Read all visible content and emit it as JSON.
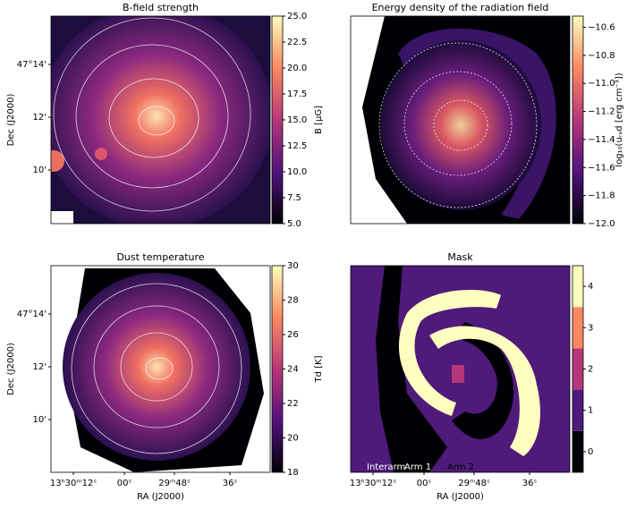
{
  "chart_data": [
    {
      "type": "image",
      "title": "B-field strength",
      "colorbar_label": "B [μG]",
      "clim": [
        5,
        25
      ],
      "cticks": [
        {
          "value": 5,
          "label": "5.0"
        },
        7.5,
        {
          "value": 10,
          "label": "10.0"
        },
        12.5,
        {
          "value": 15,
          "label": "15.0"
        },
        17.5,
        {
          "value": 20,
          "label": "20.0"
        },
        22.5,
        {
          "value": 25,
          "label": "25.0"
        }
      ],
      "ylabel": "Dec (J2000)",
      "ytick_labels": [
        "47°14'",
        "12'",
        "10'"
      ]
    },
    {
      "type": "image",
      "title": "Energy density of the radiation field",
      "colorbar_label": "log₁₀(uᵣₐd [erg cm⁻³])",
      "clim": [
        -12.0,
        -10.52
      ],
      "cticks": [
        {
          "value": -12.0,
          "label": "−12.0"
        },
        {
          "value": -11.8,
          "label": "−11.8"
        },
        {
          "value": -11.6,
          "label": "−11.6"
        },
        {
          "value": -11.4,
          "label": "−11.4"
        },
        {
          "value": -11.2,
          "label": "−11.2"
        },
        {
          "value": -11.0,
          "label": "−11.0"
        },
        {
          "value": -10.8,
          "label": "−10.8"
        },
        {
          "value": -10.6,
          "label": "−10.6"
        }
      ]
    },
    {
      "type": "image",
      "title": "Dust temperature",
      "colorbar_label": "Td [K]",
      "clim": [
        18,
        30
      ],
      "cticks": [
        18,
        20,
        22,
        24,
        26,
        28,
        30
      ],
      "ylabel": "Dec (J2000)",
      "ytick_labels": [
        "47°14'",
        "12'",
        "10'"
      ],
      "xlabel": "RA (J2000)",
      "xtick_labels": [
        "13ʰ30ᵐ12ˢ",
        "00ˢ",
        "29ᵐ48ˢ",
        "36ˢ"
      ]
    },
    {
      "type": "mask",
      "title": "Mask",
      "clim": [
        -0.5,
        4.5
      ],
      "cticks": [
        0,
        1,
        2,
        3,
        4
      ],
      "colors": [
        "#000004",
        "#4f1a7a",
        "#b5367a",
        "#fb8861",
        "#fcfdbf"
      ],
      "xlabel": "RA (J2000)",
      "xtick_labels": [
        "13ʰ30ᵐ12ˢ",
        "00ˢ",
        "29ᵐ48ˢ",
        "36ˢ"
      ],
      "annotations": [
        "Interarm",
        "Arm 1",
        "Arm 2"
      ]
    }
  ]
}
